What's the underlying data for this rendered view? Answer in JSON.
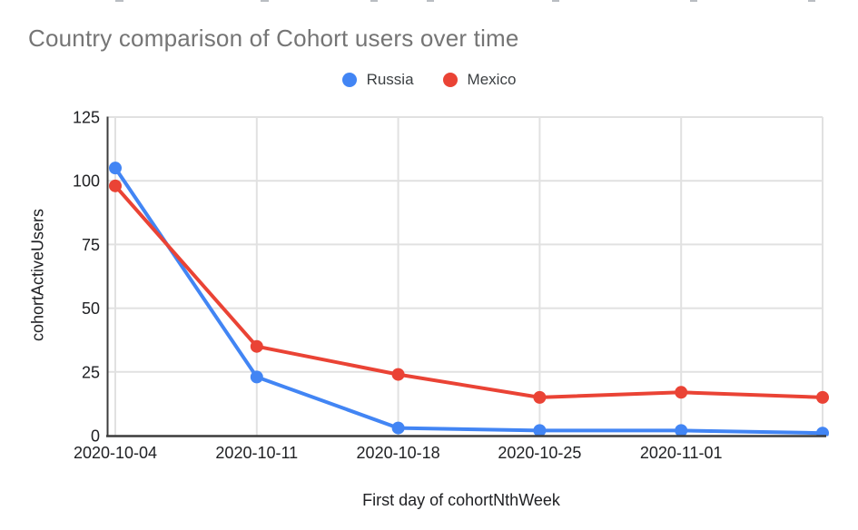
{
  "page": {
    "background": "#ffffff"
  },
  "chart_data": {
    "type": "line",
    "title": "Country comparison of Cohort users over time",
    "xlabel": "First day of cohortNthWeek",
    "ylabel": "cohortActiveUsers",
    "categories": [
      "2020-10-04",
      "2020-10-11",
      "2020-10-18",
      "2020-10-25",
      "2020-11-01",
      ""
    ],
    "x_tick_labels": [
      "2020-10-04",
      "2020-10-11",
      "2020-10-18",
      "2020-10-25",
      "2020-11-01"
    ],
    "yticks": [
      0,
      25,
      50,
      75,
      100,
      125
    ],
    "ylim": [
      0,
      125
    ],
    "grid": true,
    "legend_position": "top",
    "series": [
      {
        "name": "Russia",
        "color": "#4285F4",
        "values": [
          105,
          23,
          3,
          2,
          2,
          1
        ]
      },
      {
        "name": "Mexico",
        "color": "#EA4335",
        "values": [
          98,
          35,
          24,
          15,
          17,
          15
        ]
      }
    ],
    "colors": {
      "title_text": "#757575",
      "tick_label": "#202124",
      "axis_title": "#202124",
      "legend_text": "#3c4043",
      "gridline": "#e1e1e1",
      "axis_line": "#3c3c3c"
    }
  }
}
